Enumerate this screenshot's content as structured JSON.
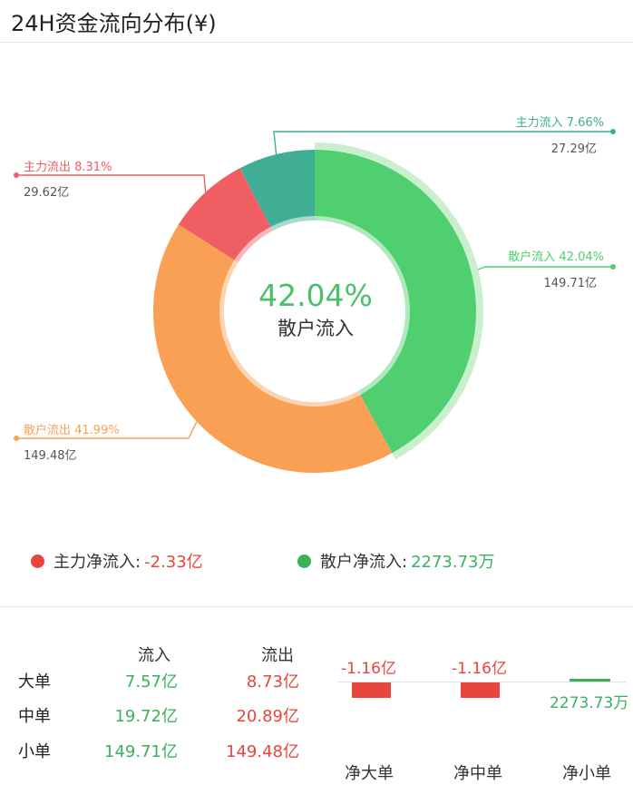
{
  "header": {
    "title": "24H资金流向分布(¥)"
  },
  "donut": {
    "center_percent": "42.04%",
    "center_label": "散户流入",
    "colors": {
      "main_in": "#3fae94",
      "retail_in": "#4fcf6f",
      "main_out": "#ee5e63",
      "retail_out": "#f9a055",
      "highlight": "#c9efcf"
    }
  },
  "slices": [
    {
      "key": "main_in",
      "label": "主力流入 7.66%",
      "amount": "27.29亿",
      "percent": 7.66,
      "color": "#3fae94"
    },
    {
      "key": "retail_in",
      "label": "散户流入 42.04%",
      "amount": "149.71亿",
      "percent": 42.04,
      "color": "#4fcf6f"
    },
    {
      "key": "retail_out",
      "label": "散户流出 41.99%",
      "amount": "149.48亿",
      "percent": 41.99,
      "color": "#f9a055"
    },
    {
      "key": "main_out",
      "label": "主力流出 8.31%",
      "amount": "29.62亿",
      "percent": 8.31,
      "color": "#ee5e63"
    }
  ],
  "legend": {
    "main_label": "主力净流入:",
    "main_value": "-2.33亿",
    "main_color": "#e8453c",
    "retail_label": "散户净流入:",
    "retail_value": "2273.73万",
    "retail_color": "#3cb15c"
  },
  "table": {
    "headers": {
      "inflow": "流入",
      "outflow": "流出"
    },
    "rows": [
      {
        "name": "大单",
        "inflow": "7.57亿",
        "outflow": "8.73亿"
      },
      {
        "name": "中单",
        "inflow": "19.72亿",
        "outflow": "20.89亿"
      },
      {
        "name": "小单",
        "inflow": "149.71亿",
        "outflow": "149.48亿"
      }
    ]
  },
  "net": [
    {
      "label": "净大单",
      "value": "-1.16亿",
      "amount": -1.16,
      "color": "#e8453c"
    },
    {
      "label": "净中单",
      "value": "-1.16亿",
      "amount": -1.16,
      "color": "#e8453c"
    },
    {
      "label": "净小单",
      "value": "2273.73万",
      "amount": 0.2274,
      "color": "#3cb15c"
    }
  ]
}
